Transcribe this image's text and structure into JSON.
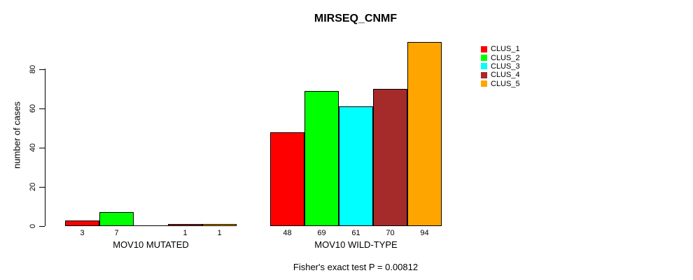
{
  "chart_data": {
    "type": "bar",
    "title": "MIRSEQ_CNMF",
    "xlabel": "",
    "ylabel": "number of cases",
    "ylim": [
      0,
      94
    ],
    "yticks": [
      0,
      20,
      40,
      60,
      80
    ],
    "grid": false,
    "annotation": "Fisher's exact test P = 0.00812",
    "legend": {
      "position": "top-right",
      "entries": [
        {
          "label": "CLUS_1",
          "color": "#FF0000"
        },
        {
          "label": "CLUS_2",
          "color": "#00FF00"
        },
        {
          "label": "CLUS_3",
          "color": "#00FFFF"
        },
        {
          "label": "CLUS_4",
          "color": "#A52A2A"
        },
        {
          "label": "CLUS_5",
          "color": "#FFA500"
        }
      ]
    },
    "series_colors": [
      "#FF0000",
      "#00FF00",
      "#00FFFF",
      "#A52A2A",
      "#FFA500"
    ],
    "series_names": [
      "CLUS_1",
      "CLUS_2",
      "CLUS_3",
      "CLUS_4",
      "CLUS_5"
    ],
    "groups": [
      {
        "label": "MOV10 MUTATED",
        "values": [
          3,
          7,
          0,
          1,
          1
        ],
        "bar_labels": [
          "3",
          "7",
          null,
          "1",
          "1"
        ]
      },
      {
        "label": "MOV10 WILD-TYPE",
        "values": [
          48,
          69,
          61,
          70,
          94
        ],
        "bar_labels": [
          "48",
          "69",
          "61",
          "70",
          "94"
        ]
      }
    ]
  },
  "colors": {
    "background": "#FFFFFF",
    "axis": "#000000",
    "text": "#000000",
    "bar_border": "#000000"
  }
}
